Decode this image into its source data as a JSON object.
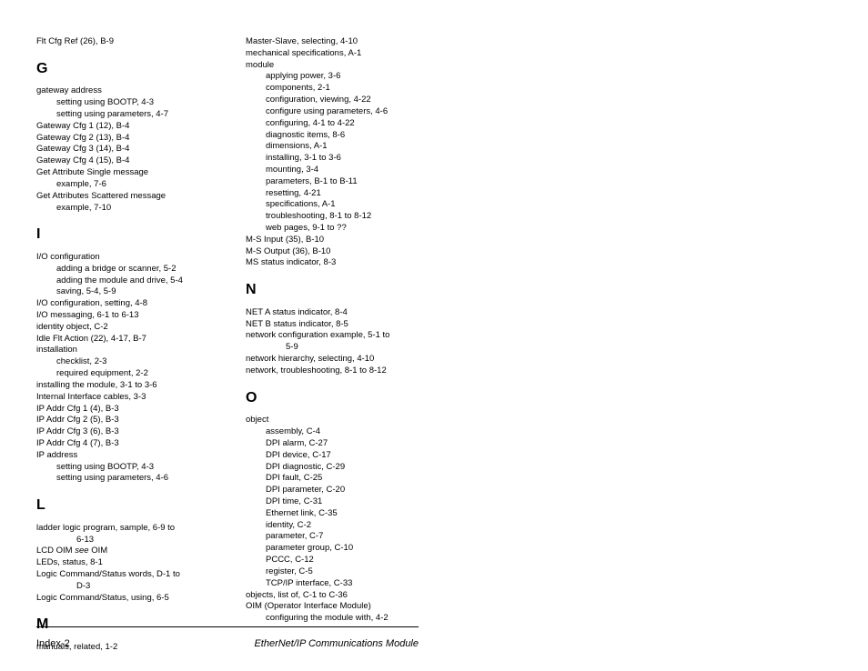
{
  "col1": {
    "pre": [
      {
        "t": "Flt Cfg Ref (26), B-9",
        "cls": "entry"
      }
    ],
    "G": [
      {
        "t": "gateway address",
        "cls": "entry"
      },
      {
        "t": "setting using BOOTP, 4-3",
        "cls": "entry sub"
      },
      {
        "t": "setting using parameters, 4-7",
        "cls": "entry sub"
      },
      {
        "t": "Gateway Cfg 1 (12), B-4",
        "cls": "entry"
      },
      {
        "t": "Gateway Cfg 2 (13), B-4",
        "cls": "entry"
      },
      {
        "t": "Gateway Cfg 3 (14), B-4",
        "cls": "entry"
      },
      {
        "t": "Gateway Cfg 4 (15), B-4",
        "cls": "entry"
      },
      {
        "t": "Get Attribute Single message",
        "cls": "entry"
      },
      {
        "t": "example, 7-6",
        "cls": "entry sub"
      },
      {
        "t": "Get Attributes Scattered message",
        "cls": "entry"
      },
      {
        "t": "example, 7-10",
        "cls": "entry sub"
      }
    ],
    "I": [
      {
        "t": "I/O configuration",
        "cls": "entry"
      },
      {
        "t": "adding a bridge or scanner, 5-2",
        "cls": "entry sub"
      },
      {
        "t": "adding the module and drive, 5-4",
        "cls": "entry sub"
      },
      {
        "t": "saving, 5-4, 5-9",
        "cls": "entry sub"
      },
      {
        "t": "I/O configuration, setting, 4-8",
        "cls": "entry"
      },
      {
        "t": "I/O messaging, 6-1 to 6-13",
        "cls": "entry"
      },
      {
        "t": "identity object, C-2",
        "cls": "entry"
      },
      {
        "t": "Idle Flt Action (22), 4-17, B-7",
        "cls": "entry"
      },
      {
        "t": "installation",
        "cls": "entry"
      },
      {
        "t": "checklist, 2-3",
        "cls": "entry sub"
      },
      {
        "t": "required equipment, 2-2",
        "cls": "entry sub"
      },
      {
        "t": "installing the module, 3-1 to 3-6",
        "cls": "entry"
      },
      {
        "t": "Internal Interface cables, 3-3",
        "cls": "entry"
      },
      {
        "t": "IP Addr Cfg 1 (4), B-3",
        "cls": "entry"
      },
      {
        "t": "IP Addr Cfg 2 (5), B-3",
        "cls": "entry"
      },
      {
        "t": "IP Addr Cfg 3 (6), B-3",
        "cls": "entry"
      },
      {
        "t": "IP Addr Cfg 4 (7), B-3",
        "cls": "entry"
      },
      {
        "t": "IP address",
        "cls": "entry"
      },
      {
        "t": "setting using BOOTP, 4-3",
        "cls": "entry sub"
      },
      {
        "t": "setting using parameters, 4-6",
        "cls": "entry sub"
      }
    ],
    "L": [
      {
        "t": "ladder logic program, sample, 6-9 to",
        "cls": "entry"
      },
      {
        "t": "6-13",
        "cls": "entry sub2"
      },
      {
        "html": "LCD OIM <span class=\"italic\">see</span> OIM",
        "cls": "entry"
      },
      {
        "t": "LEDs, status, 8-1",
        "cls": "entry"
      },
      {
        "t": "Logic Command/Status words, D-1 to",
        "cls": "entry"
      },
      {
        "t": "D-3",
        "cls": "entry sub2"
      },
      {
        "t": "Logic Command/Status, using, 6-5",
        "cls": "entry"
      }
    ],
    "M": [
      {
        "t": "manuals, related, 1-2",
        "cls": "entry"
      }
    ]
  },
  "col2": {
    "pre": [
      {
        "t": "Master-Slave, selecting, 4-10",
        "cls": "entry"
      },
      {
        "t": "mechanical specifications, A-1",
        "cls": "entry"
      },
      {
        "t": "module",
        "cls": "entry"
      },
      {
        "t": "applying power, 3-6",
        "cls": "entry sub"
      },
      {
        "t": "components, 2-1",
        "cls": "entry sub"
      },
      {
        "t": "configuration, viewing, 4-22",
        "cls": "entry sub"
      },
      {
        "t": "configure using parameters, 4-6",
        "cls": "entry sub"
      },
      {
        "t": "configuring, 4-1 to 4-22",
        "cls": "entry sub"
      },
      {
        "t": "diagnostic items, 8-6",
        "cls": "entry sub"
      },
      {
        "t": "dimensions, A-1",
        "cls": "entry sub"
      },
      {
        "t": "installing, 3-1 to 3-6",
        "cls": "entry sub"
      },
      {
        "t": "mounting, 3-4",
        "cls": "entry sub"
      },
      {
        "t": "parameters, B-1 to B-11",
        "cls": "entry sub"
      },
      {
        "t": "resetting, 4-21",
        "cls": "entry sub"
      },
      {
        "t": "specifications, A-1",
        "cls": "entry sub"
      },
      {
        "t": "troubleshooting, 8-1 to 8-12",
        "cls": "entry sub"
      },
      {
        "t": "web pages, 9-1 to ??",
        "cls": "entry sub"
      },
      {
        "t": "M-S Input (35), B-10",
        "cls": "entry"
      },
      {
        "t": "M-S Output (36), B-10",
        "cls": "entry"
      },
      {
        "t": "MS status indicator, 8-3",
        "cls": "entry"
      }
    ],
    "N": [
      {
        "t": "NET A status indicator, 8-4",
        "cls": "entry"
      },
      {
        "t": "NET B status indicator, 8-5",
        "cls": "entry"
      },
      {
        "t": "network configuration example, 5-1 to",
        "cls": "entry"
      },
      {
        "t": "5-9",
        "cls": "entry sub2"
      },
      {
        "t": "network hierarchy, selecting, 4-10",
        "cls": "entry"
      },
      {
        "t": "network, troubleshooting, 8-1 to 8-12",
        "cls": "entry"
      }
    ],
    "O": [
      {
        "t": "object",
        "cls": "entry"
      },
      {
        "t": "assembly, C-4",
        "cls": "entry sub"
      },
      {
        "t": "DPI alarm, C-27",
        "cls": "entry sub"
      },
      {
        "t": "DPI device, C-17",
        "cls": "entry sub"
      },
      {
        "t": "DPI diagnostic, C-29",
        "cls": "entry sub"
      },
      {
        "t": "DPI fault, C-25",
        "cls": "entry sub"
      },
      {
        "t": "DPI parameter, C-20",
        "cls": "entry sub"
      },
      {
        "t": "DPI time, C-31",
        "cls": "entry sub"
      },
      {
        "t": "Ethernet link, C-35",
        "cls": "entry sub"
      },
      {
        "t": "identity, C-2",
        "cls": "entry sub"
      },
      {
        "t": "parameter, C-7",
        "cls": "entry sub"
      },
      {
        "t": "parameter group, C-10",
        "cls": "entry sub"
      },
      {
        "t": "PCCC, C-12",
        "cls": "entry sub"
      },
      {
        "t": "register, C-5",
        "cls": "entry sub"
      },
      {
        "t": "TCP/IP interface, C-33",
        "cls": "entry sub"
      },
      {
        "t": "objects, list of, C-1 to C-36",
        "cls": "entry"
      },
      {
        "t": "OIM (Operator Interface Module)",
        "cls": "entry"
      },
      {
        "t": "configuring the module with, 4-2",
        "cls": "entry sub"
      }
    ]
  },
  "letters": {
    "G": "G",
    "I": "I",
    "L": "L",
    "M": "M",
    "N": "N",
    "O": "O"
  },
  "footer": {
    "left": "Index-2",
    "right": "EtherNet/IP Communications Module"
  }
}
